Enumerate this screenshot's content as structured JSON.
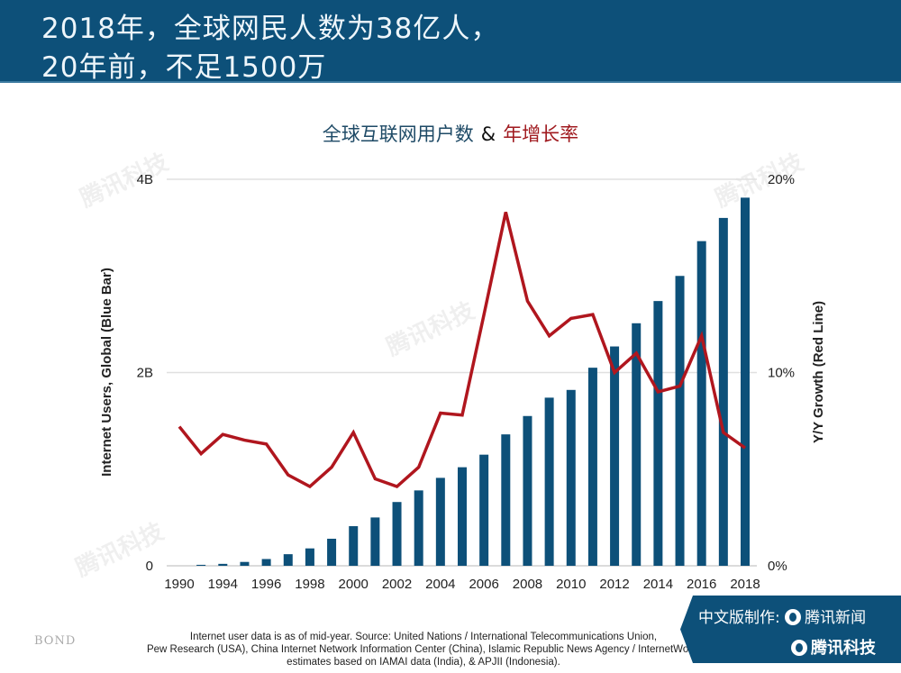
{
  "header": {
    "line1": "2018年，全球网民人数为38亿人，",
    "line2": "20年前，不足1500万"
  },
  "chart_data": {
    "type": "bar+line",
    "title_part1": "全球互联网用户数",
    "title_amp": "&",
    "title_part2": "年增长率",
    "x_tick_labels": [
      "1990",
      "1994",
      "1996",
      "1998",
      "2000",
      "2002",
      "2004",
      "2006",
      "2008",
      "2010",
      "2012",
      "2014",
      "2016",
      "2018"
    ],
    "left_axis": {
      "label": "Internet Users, Global (Blue Bar)",
      "ticks": [
        "0",
        "2B",
        "4B"
      ],
      "range_billions": [
        0,
        4
      ]
    },
    "right_axis": {
      "label": "Y/Y Growth (Red Line)",
      "ticks": [
        "0%",
        "10%",
        "20%"
      ],
      "range_percent": [
        0,
        20
      ]
    },
    "grid": true,
    "series": [
      {
        "name": "Internet Users, Global (Blue Bar)",
        "type": "bar",
        "color": "#0d5079",
        "unit": "billions",
        "values": [
          0,
          0.01,
          0.02,
          0.04,
          0.07,
          0.12,
          0.18,
          0.28,
          0.41,
          0.5,
          0.66,
          0.78,
          0.91,
          1.02,
          1.15,
          1.36,
          1.55,
          1.74,
          1.82,
          2.05,
          2.27,
          2.51,
          2.74,
          3.0,
          3.36,
          3.6,
          3.81
        ]
      },
      {
        "name": "Y/Y Growth (Red Line)",
        "type": "line",
        "color": "#b0161e",
        "unit": "percent",
        "values": [
          7.2,
          5.8,
          6.8,
          6.5,
          6.3,
          4.7,
          4.1,
          5.1,
          6.9,
          4.5,
          4.1,
          5.1,
          7.9,
          7.8,
          13.0,
          18.3,
          13.7,
          11.9,
          12.8,
          13.0,
          10.0,
          11.0,
          9.0,
          9.3,
          11.9,
          6.9,
          6.1
        ]
      }
    ]
  },
  "watermark": "腾讯科技",
  "footer": {
    "bond": "BOND",
    "note_line1": "Internet user data is as of mid-year.  Source: United Nations / International Telecommunications Union,",
    "note_line2": "Pew Research (USA), China Internet Network Information Center (China), Islamic Republic News Agency / InternetWorld",
    "note_line3": "estimates based on IAMAI data (India), & APJII (Indonesia).",
    "badge_label": "中文版制作:",
    "badge_brand1": "腾讯新闻",
    "badge_brand2": "腾讯科技"
  }
}
